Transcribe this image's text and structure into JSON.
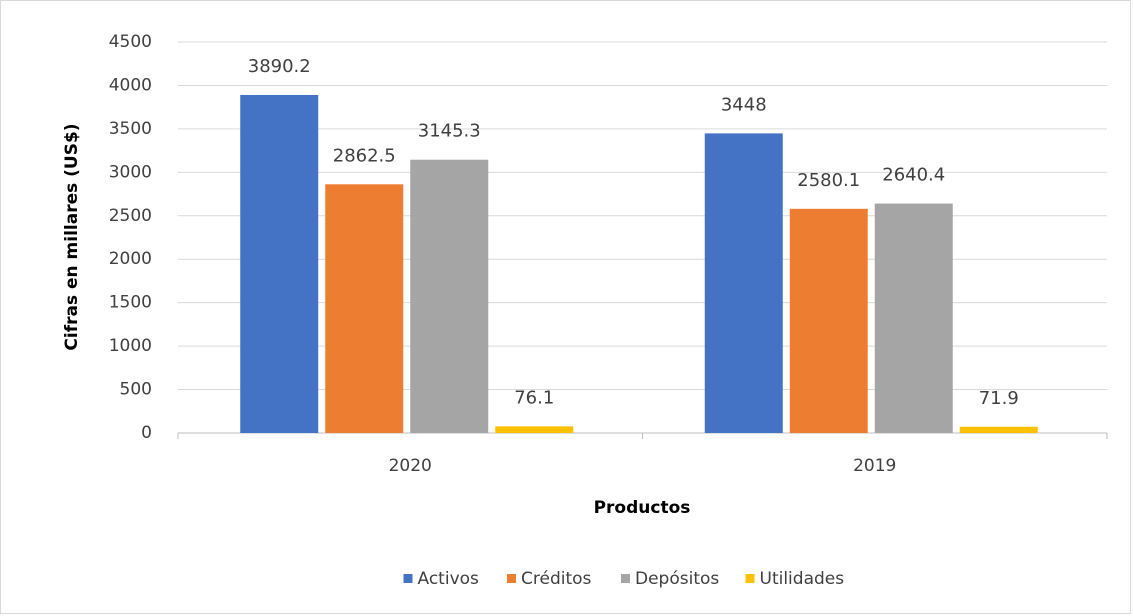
{
  "chart_data": {
    "type": "bar",
    "categories": [
      "2020",
      "2019"
    ],
    "series": [
      {
        "name": "Activos",
        "color": "#4472c4",
        "values": [
          3890.2,
          3448
        ]
      },
      {
        "name": "Créditos",
        "color": "#ed7d31",
        "values": [
          2862.5,
          2580.1
        ]
      },
      {
        "name": "Depósitos",
        "color": "#a5a5a5",
        "values": [
          3145.3,
          2640.4
        ]
      },
      {
        "name": "Utilidades",
        "color": "#ffc000",
        "values": [
          76.1,
          71.9
        ]
      }
    ],
    "ylim": [
      0,
      4500
    ],
    "yticks": [
      0,
      500,
      1000,
      1500,
      2000,
      2500,
      3000,
      3500,
      4000,
      4500
    ],
    "xlabel": "Productos",
    "ylabel": "Cifras en millares (US$)",
    "grid": true,
    "legend": "bottom"
  }
}
